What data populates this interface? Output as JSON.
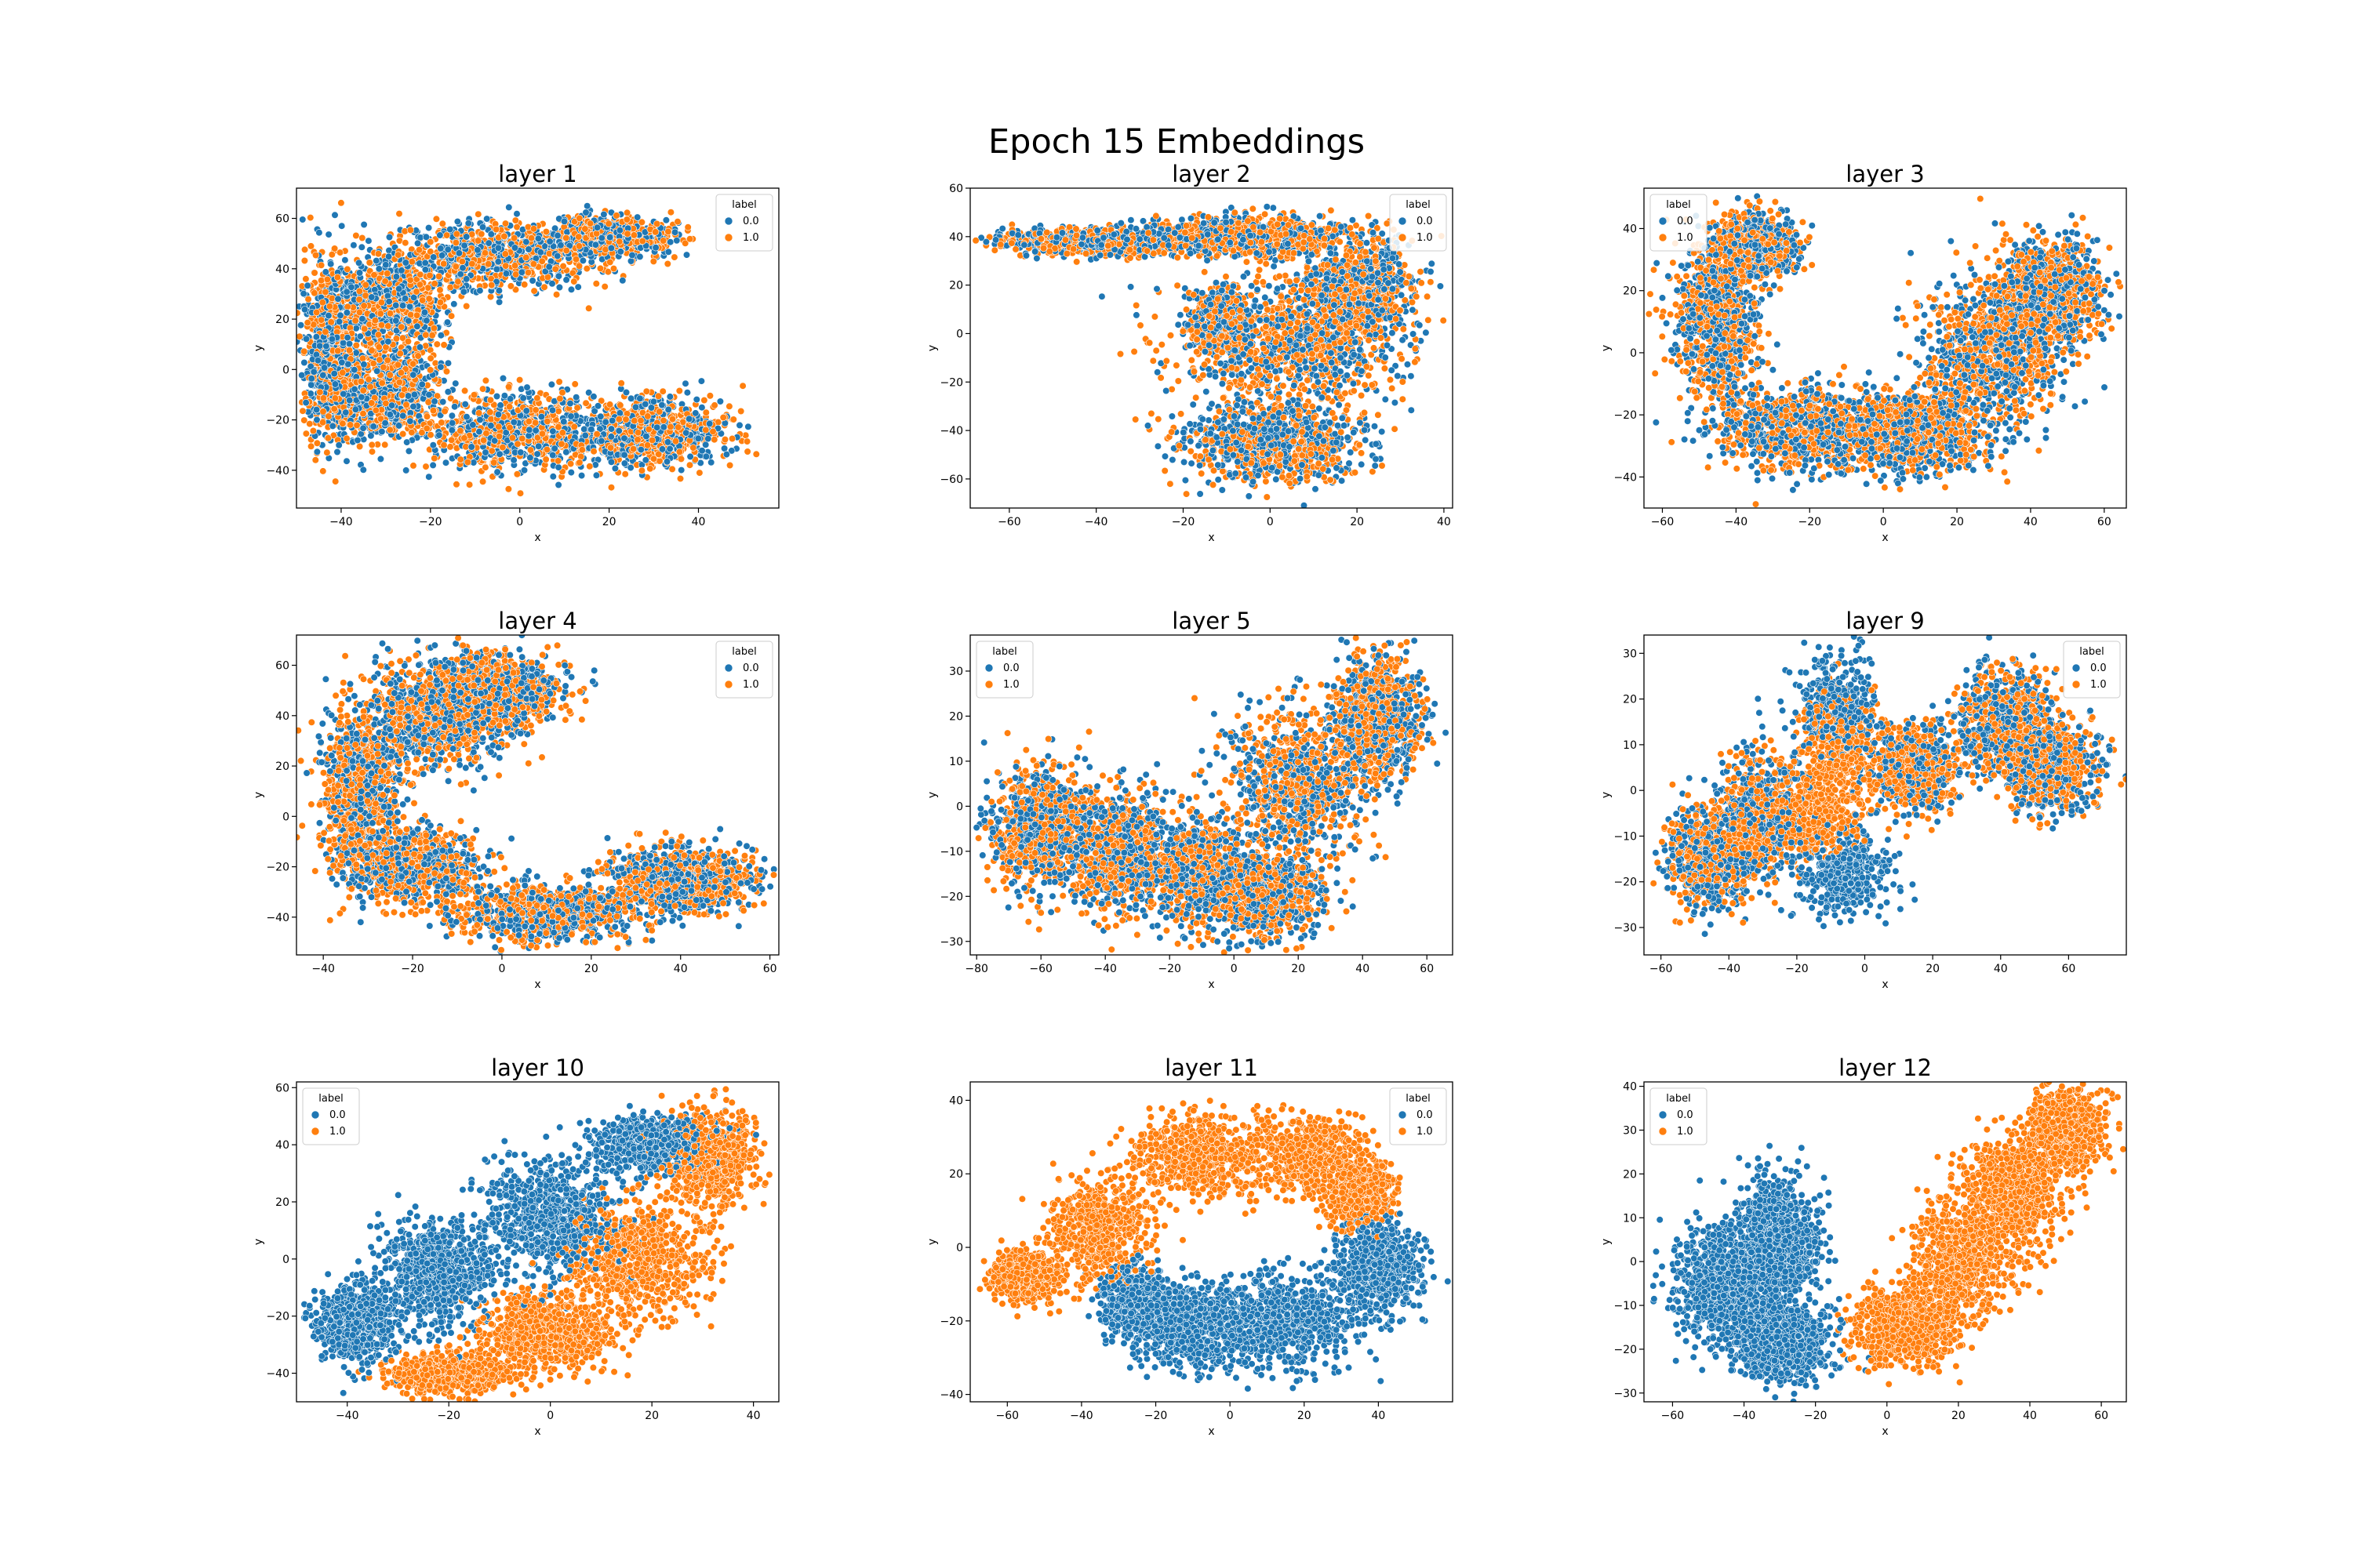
{
  "figure": {
    "suptitle": "Epoch 15 Embeddings"
  },
  "colors": {
    "0.0": "#1f77b4",
    "1.0": "#ff7f0e"
  },
  "chart_data": [
    {
      "type": "scatter",
      "title": "layer 1",
      "xlabel": "x",
      "ylabel": "y",
      "xlim": [
        -50,
        58
      ],
      "ylim": [
        -55,
        72
      ],
      "xticks": [
        -40,
        -20,
        0,
        20,
        40
      ],
      "yticks": [
        -40,
        -20,
        0,
        20,
        40,
        60
      ],
      "legend": {
        "title": "label",
        "entries": [
          "0.0",
          "1.0"
        ],
        "placement": "upper right"
      },
      "series": [
        {
          "name": "0.0",
          "approx_points": 3000,
          "regions": [
            [
              -42,
              8,
              6,
              32
            ],
            [
              -28,
              25,
              10,
              18
            ],
            [
              -5,
              45,
              20,
              12
            ],
            [
              20,
              52,
              12,
              7
            ],
            [
              -30,
              -10,
              12,
              16
            ],
            [
              0,
              -25,
              20,
              14
            ],
            [
              30,
              -25,
              15,
              12
            ]
          ]
        },
        {
          "name": "1.0",
          "approx_points": 3000,
          "regions": [
            [
              -42,
              8,
              6,
              32
            ],
            [
              -28,
              25,
              10,
              18
            ],
            [
              -5,
              45,
              20,
              12
            ],
            [
              20,
              52,
              12,
              7
            ],
            [
              -30,
              -10,
              12,
              16
            ],
            [
              0,
              -25,
              20,
              14
            ],
            [
              30,
              -25,
              15,
              12
            ]
          ]
        }
      ]
    },
    {
      "type": "scatter",
      "title": "layer 2",
      "xlabel": "x",
      "ylabel": "y",
      "xlim": [
        -69,
        42
      ],
      "ylim": [
        -72,
        60
      ],
      "xticks": [
        -60,
        -40,
        -20,
        0,
        20,
        40
      ],
      "yticks": [
        -60,
        -40,
        -20,
        0,
        20,
        40,
        60
      ],
      "legend": {
        "title": "label",
        "entries": [
          "0.0",
          "1.0"
        ],
        "placement": "upper right"
      },
      "series": [
        {
          "name": "0.0",
          "approx_points": 3000,
          "regions": [
            [
              -40,
              38,
              20,
              5
            ],
            [
              -5,
              40,
              20,
              7
            ],
            [
              20,
              20,
              12,
              18
            ],
            [
              5,
              -5,
              22,
              25
            ],
            [
              0,
              -45,
              18,
              14
            ],
            [
              -12,
              5,
              5,
              10
            ]
          ]
        },
        {
          "name": "1.0",
          "approx_points": 3000,
          "regions": [
            [
              -40,
              38,
              20,
              5
            ],
            [
              -5,
              40,
              20,
              7
            ],
            [
              20,
              20,
              12,
              18
            ],
            [
              5,
              -5,
              22,
              25
            ],
            [
              0,
              -45,
              18,
              14
            ],
            [
              -12,
              5,
              5,
              10
            ]
          ]
        }
      ]
    },
    {
      "type": "scatter",
      "title": "layer 3",
      "xlabel": "x",
      "ylabel": "y",
      "xlim": [
        -65,
        66
      ],
      "ylim": [
        -50,
        53
      ],
      "xticks": [
        -60,
        -40,
        -20,
        0,
        20,
        40,
        60
      ],
      "yticks": [
        -40,
        -20,
        0,
        20,
        40
      ],
      "legend": {
        "title": "label",
        "entries": [
          "0.0",
          "1.0"
        ],
        "placement": "upper left"
      },
      "series": [
        {
          "name": "0.0",
          "approx_points": 3000,
          "regions": [
            [
              -45,
              10,
              10,
              25
            ],
            [
              -35,
              35,
              10,
              8
            ],
            [
              -20,
              -25,
              22,
              12
            ],
            [
              10,
              -25,
              15,
              12
            ],
            [
              30,
              0,
              18,
              22
            ],
            [
              45,
              20,
              12,
              15
            ]
          ]
        },
        {
          "name": "1.0",
          "approx_points": 3000,
          "regions": [
            [
              -45,
              10,
              10,
              25
            ],
            [
              -35,
              35,
              10,
              8
            ],
            [
              -20,
              -25,
              22,
              12
            ],
            [
              10,
              -25,
              15,
              12
            ],
            [
              30,
              0,
              18,
              22
            ],
            [
              45,
              20,
              12,
              15
            ]
          ]
        }
      ]
    },
    {
      "type": "scatter",
      "title": "layer 4",
      "xlabel": "x",
      "ylabel": "y",
      "xlim": [
        -46,
        62
      ],
      "ylim": [
        -55,
        72
      ],
      "xticks": [
        -40,
        -20,
        0,
        20,
        40,
        60
      ],
      "yticks": [
        -40,
        -20,
        0,
        20,
        40,
        60
      ],
      "legend": {
        "title": "label",
        "entries": [
          "0.0",
          "1.0"
        ],
        "placement": "upper right"
      },
      "series": [
        {
          "name": "0.0",
          "approx_points": 3000,
          "regions": [
            [
              -32,
              10,
              8,
              28
            ],
            [
              -15,
              40,
              14,
              20
            ],
            [
              0,
              50,
              12,
              12
            ],
            [
              -20,
              -20,
              14,
              12
            ],
            [
              10,
              -38,
              18,
              10
            ],
            [
              40,
              -25,
              15,
              12
            ]
          ]
        },
        {
          "name": "1.0",
          "approx_points": 3000,
          "regions": [
            [
              -32,
              10,
              8,
              28
            ],
            [
              -15,
              40,
              14,
              20
            ],
            [
              0,
              50,
              12,
              12
            ],
            [
              -20,
              -20,
              14,
              12
            ],
            [
              10,
              -38,
              18,
              10
            ],
            [
              40,
              -25,
              15,
              12
            ]
          ]
        }
      ]
    },
    {
      "type": "scatter",
      "title": "layer 5",
      "xlabel": "x",
      "ylabel": "y",
      "xlim": [
        -82,
        68
      ],
      "ylim": [
        -33,
        38
      ],
      "xticks": [
        -80,
        -60,
        -40,
        -20,
        0,
        20,
        40,
        60
      ],
      "yticks": [
        -30,
        -20,
        -10,
        0,
        10,
        20,
        30
      ],
      "legend": {
        "title": "label",
        "entries": [
          "0.0",
          "1.0"
        ],
        "placement": "upper left"
      },
      "series": [
        {
          "name": "0.0",
          "approx_points": 3000,
          "regions": [
            [
              -60,
              -5,
              14,
              12
            ],
            [
              -35,
              -10,
              14,
              12
            ],
            [
              -10,
              -15,
              15,
              10
            ],
            [
              20,
              5,
              20,
              15
            ],
            [
              45,
              20,
              12,
              12
            ],
            [
              10,
              -20,
              15,
              8
            ]
          ]
        },
        {
          "name": "1.0",
          "approx_points": 3000,
          "regions": [
            [
              -60,
              -5,
              14,
              12
            ],
            [
              -35,
              -10,
              14,
              12
            ],
            [
              -10,
              -15,
              15,
              10
            ],
            [
              20,
              5,
              20,
              15
            ],
            [
              45,
              20,
              12,
              12
            ],
            [
              10,
              -20,
              15,
              8
            ]
          ]
        }
      ]
    },
    {
      "type": "scatter",
      "title": "layer 9",
      "xlabel": "x",
      "ylabel": "y",
      "xlim": [
        -65,
        77
      ],
      "ylim": [
        -36,
        34
      ],
      "xticks": [
        -60,
        -40,
        -20,
        0,
        20,
        40,
        60
      ],
      "yticks": [
        -30,
        -20,
        -10,
        0,
        10,
        20,
        30
      ],
      "legend": {
        "title": "label",
        "entries": [
          "0.0",
          "1.0"
        ],
        "placement": "upper right"
      },
      "series": [
        {
          "name": "0.0",
          "approx_points": 3000,
          "regions": [
            [
              -45,
              -15,
              12,
              10
            ],
            [
              -30,
              -5,
              12,
              12
            ],
            [
              -8,
              18,
              10,
              10
            ],
            [
              15,
              5,
              12,
              8
            ],
            [
              42,
              15,
              12,
              10
            ],
            [
              55,
              5,
              12,
              8
            ],
            [
              -5,
              -18,
              12,
              8
            ]
          ]
        },
        {
          "name": "1.0",
          "approx_points": 3000,
          "regions": [
            [
              -45,
              -15,
              12,
              10
            ],
            [
              -30,
              -5,
              12,
              12
            ],
            [
              -8,
              10,
              10,
              10
            ],
            [
              15,
              5,
              12,
              8
            ],
            [
              42,
              15,
              12,
              10
            ],
            [
              55,
              5,
              12,
              8
            ],
            [
              -15,
              -5,
              12,
              8
            ]
          ]
        }
      ]
    },
    {
      "type": "scatter",
      "title": "layer 10",
      "xlabel": "x",
      "ylabel": "y",
      "xlim": [
        -50,
        45
      ],
      "ylim": [
        -50,
        62
      ],
      "xticks": [
        -40,
        -20,
        0,
        20,
        40
      ],
      "yticks": [
        -40,
        -20,
        0,
        20,
        40,
        60
      ],
      "legend": {
        "title": "label",
        "entries": [
          "0.0",
          "1.0"
        ],
        "placement": "upper left"
      },
      "series": [
        {
          "name": "0.0",
          "approx_points": 3000,
          "regions": [
            [
              -38,
              -22,
              7,
              12
            ],
            [
              -22,
              -5,
              10,
              16
            ],
            [
              0,
              15,
              12,
              18
            ],
            [
              20,
              40,
              10,
              8
            ]
          ]
        },
        {
          "name": "1.0",
          "approx_points": 3000,
          "regions": [
            [
              -20,
              -40,
              10,
              6
            ],
            [
              0,
              -25,
              12,
              12
            ],
            [
              18,
              0,
              12,
              18
            ],
            [
              32,
              35,
              8,
              15
            ]
          ]
        }
      ]
    },
    {
      "type": "scatter",
      "title": "layer 11",
      "xlabel": "x",
      "ylabel": "y",
      "xlim": [
        -70,
        60
      ],
      "ylim": [
        -42,
        45
      ],
      "xticks": [
        -60,
        -40,
        -20,
        0,
        20,
        40
      ],
      "yticks": [
        -40,
        -20,
        0,
        20,
        40
      ],
      "legend": {
        "title": "label",
        "entries": [
          "0.0",
          "1.0"
        ],
        "placement": "upper right"
      },
      "series": [
        {
          "name": "0.0",
          "approx_points": 3000,
          "regions": [
            [
              -10,
              -22,
              15,
              10
            ],
            [
              15,
              -20,
              18,
              12
            ],
            [
              40,
              -5,
              10,
              12
            ],
            [
              -25,
              -15,
              8,
              8
            ]
          ]
        },
        {
          "name": "1.0",
          "approx_points": 3000,
          "regions": [
            [
              -55,
              -8,
              8,
              6
            ],
            [
              -35,
              5,
              12,
              12
            ],
            [
              -10,
              25,
              15,
              10
            ],
            [
              20,
              25,
              15,
              10
            ],
            [
              35,
              15,
              8,
              8
            ]
          ]
        }
      ]
    },
    {
      "type": "scatter",
      "title": "layer 12",
      "xlabel": "x",
      "ylabel": "y",
      "xlim": [
        -68,
        67
      ],
      "ylim": [
        -32,
        41
      ],
      "xticks": [
        -60,
        -40,
        -20,
        0,
        20,
        40,
        60
      ],
      "yticks": [
        -30,
        -20,
        -10,
        0,
        10,
        20,
        30,
        40
      ],
      "legend": {
        "title": "label",
        "entries": [
          "0.0",
          "1.0"
        ],
        "placement": "upper left"
      },
      "series": [
        {
          "name": "0.0",
          "approx_points": 3000,
          "regions": [
            [
              -45,
              -5,
              12,
              12
            ],
            [
              -30,
              5,
              10,
              12
            ],
            [
              -30,
              -18,
              12,
              8
            ]
          ]
        },
        {
          "name": "1.0",
          "approx_points": 3000,
          "regions": [
            [
              5,
              -15,
              12,
              8
            ],
            [
              20,
              0,
              12,
              12
            ],
            [
              35,
              15,
              12,
              12
            ],
            [
              50,
              30,
              10,
              8
            ]
          ]
        }
      ]
    }
  ]
}
